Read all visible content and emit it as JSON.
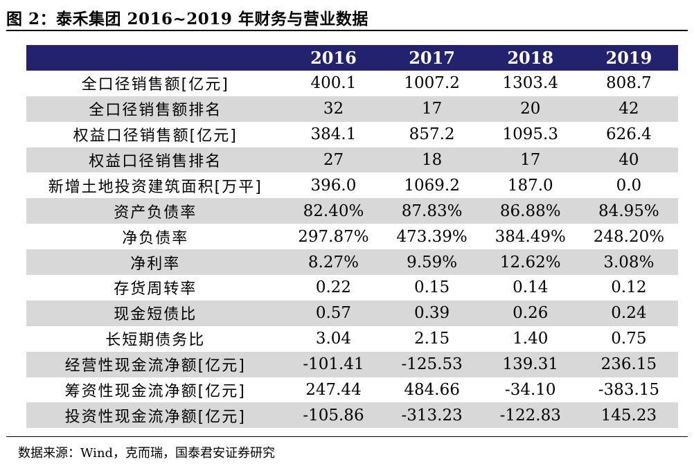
{
  "title": "图 2：泰禾集团 2016~2019 年财务与营业数据",
  "table": {
    "headers": [
      "",
      "2016",
      "2017",
      "2018",
      "2019"
    ],
    "rows": [
      {
        "label": "全口径销售额[亿元]",
        "values": [
          "400.1",
          "1007.2",
          "1303.4",
          "808.7"
        ]
      },
      {
        "label": "全口径销售额排名",
        "values": [
          "32",
          "17",
          "20",
          "42"
        ]
      },
      {
        "label": "权益口径销售额[亿元]",
        "values": [
          "384.1",
          "857.2",
          "1095.3",
          "626.4"
        ]
      },
      {
        "label": "权益口径销售排名",
        "values": [
          "27",
          "18",
          "17",
          "40"
        ]
      },
      {
        "label": "新增土地投资建筑面积[万平]",
        "values": [
          "396.0",
          "1069.2",
          "187.0",
          "0.0"
        ]
      },
      {
        "label": "资产负债率",
        "values": [
          "82.40%",
          "87.83%",
          "86.88%",
          "84.95%"
        ]
      },
      {
        "label": "净负债率",
        "values": [
          "297.87%",
          "473.39%",
          "384.49%",
          "248.20%"
        ]
      },
      {
        "label": "净利率",
        "values": [
          "8.27%",
          "9.59%",
          "12.62%",
          "3.08%"
        ]
      },
      {
        "label": "存货周转率",
        "values": [
          "0.22",
          "0.15",
          "0.14",
          "0.12"
        ]
      },
      {
        "label": "现金短债比",
        "values": [
          "0.57",
          "0.39",
          "0.26",
          "0.24"
        ]
      },
      {
        "label": "长短期债务比",
        "values": [
          "3.04",
          "2.15",
          "1.40",
          "0.75"
        ]
      },
      {
        "label": "经营性现金流净额[亿元]",
        "values": [
          "-101.41",
          "-125.53",
          "139.31",
          "236.15"
        ]
      },
      {
        "label": "筹资性现金流净额[亿元]",
        "values": [
          "247.44",
          "484.66",
          "-34.10",
          "-383.15"
        ]
      },
      {
        "label": "投资性现金流净额[亿元]",
        "values": [
          "-105.86",
          "-313.23",
          "-122.83",
          "145.23"
        ]
      }
    ]
  },
  "source": "数据来源：Wind，克而瑞，国泰君安证券研究",
  "colors": {
    "header_bg": "#22226e",
    "header_text": "#ffffff",
    "shade": "#d8d8d8"
  }
}
